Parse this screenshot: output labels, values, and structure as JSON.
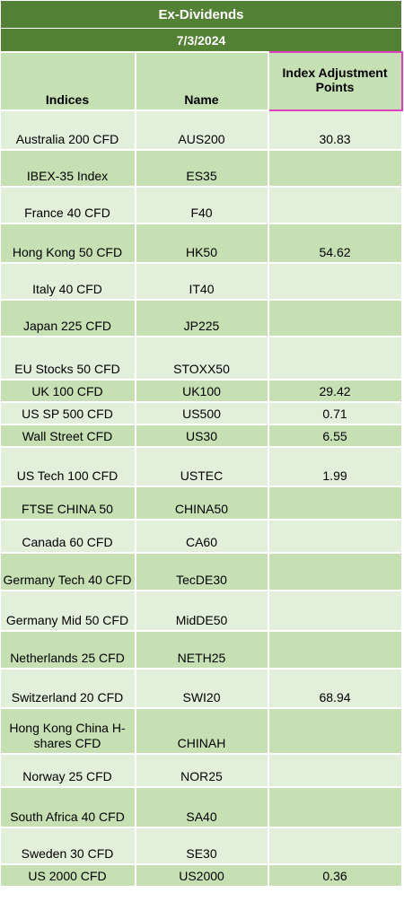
{
  "title": "Ex-Dividends",
  "date": "7/3/2024",
  "headers": {
    "indices": "Indices",
    "name": "Name",
    "adjustment": "Index Adjustment Points"
  },
  "rows": [
    {
      "index": "Australia 200 CFD",
      "name": "AUS200",
      "points": "30.83"
    },
    {
      "index": "IBEX-35 Index",
      "name": "ES35",
      "points": ""
    },
    {
      "index": "France 40 CFD",
      "name": "F40",
      "points": ""
    },
    {
      "index": "Hong Kong 50 CFD",
      "name": "HK50",
      "points": "54.62"
    },
    {
      "index": "Italy 40 CFD",
      "name": "IT40",
      "points": ""
    },
    {
      "index": "Japan 225 CFD",
      "name": "JP225",
      "points": ""
    },
    {
      "index": "EU Stocks 50 CFD",
      "name": "STOXX50",
      "points": ""
    },
    {
      "index": "UK 100 CFD",
      "name": "UK100",
      "points": "29.42"
    },
    {
      "index": "US SP 500 CFD",
      "name": "US500",
      "points": "0.71"
    },
    {
      "index": "Wall Street CFD",
      "name": "US30",
      "points": "6.55"
    },
    {
      "index": "US Tech 100 CFD",
      "name": "USTEC",
      "points": "1.99"
    },
    {
      "index": "FTSE CHINA 50",
      "name": "CHINA50",
      "points": ""
    },
    {
      "index": "Canada 60 CFD",
      "name": "CA60",
      "points": ""
    },
    {
      "index": "Germany Tech 40 CFD",
      "name": "TecDE30",
      "points": ""
    },
    {
      "index": "Germany Mid 50 CFD",
      "name": "MidDE50",
      "points": ""
    },
    {
      "index": "Netherlands 25 CFD",
      "name": "NETH25",
      "points": ""
    },
    {
      "index": "Switzerland 20 CFD",
      "name": "SWI20",
      "points": "68.94"
    },
    {
      "index": "Hong Kong China H-shares CFD",
      "name": "CHINAH",
      "points": ""
    },
    {
      "index": "Norway 25 CFD",
      "name": "NOR25",
      "points": ""
    },
    {
      "index": "South Africa 40 CFD",
      "name": "SA40",
      "points": ""
    },
    {
      "index": "Sweden 30 CFD",
      "name": "SE30",
      "points": ""
    },
    {
      "index": "US 2000 CFD",
      "name": "US2000",
      "points": "0.36"
    }
  ]
}
